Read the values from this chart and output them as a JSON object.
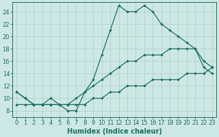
{
  "xlabel": "Humidex (Indice chaleur)",
  "xlim": [
    -0.5,
    23.5
  ],
  "ylim": [
    7,
    25.5
  ],
  "yticks": [
    8,
    10,
    12,
    14,
    16,
    18,
    20,
    22,
    24
  ],
  "xticks": [
    0,
    1,
    2,
    3,
    4,
    5,
    6,
    7,
    8,
    9,
    10,
    11,
    12,
    13,
    14,
    15,
    16,
    17,
    18,
    19,
    20,
    21,
    22,
    23
  ],
  "bg_color": "#cde8e4",
  "grid_major_color": "#b0d8d2",
  "grid_minor_color": "#daf0ec",
  "line_color": "#1a6b60",
  "line1_x": [
    0,
    1,
    2,
    3,
    4,
    5,
    6,
    7,
    8,
    9,
    10,
    11,
    12,
    13,
    14,
    15,
    16,
    17,
    18,
    19,
    20,
    21,
    22,
    23
  ],
  "line1_y": [
    11,
    10,
    9,
    9,
    10,
    9,
    8,
    8,
    11,
    13,
    17,
    21,
    25,
    24,
    24,
    25,
    24,
    22,
    21,
    20,
    19,
    18,
    15,
    14
  ],
  "line2_x": [
    0,
    1,
    2,
    3,
    4,
    5,
    6,
    7,
    8,
    9,
    10,
    11,
    12,
    13,
    14,
    15,
    16,
    17,
    18,
    19,
    20,
    21,
    22,
    23
  ],
  "line2_y": [
    11,
    10,
    9,
    9,
    9,
    9,
    9,
    10,
    11,
    12,
    13,
    14,
    15,
    16,
    16,
    17,
    17,
    17,
    18,
    18,
    18,
    18,
    16,
    15
  ],
  "line3_x": [
    0,
    1,
    2,
    3,
    4,
    5,
    6,
    7,
    8,
    9,
    10,
    11,
    12,
    13,
    14,
    15,
    16,
    17,
    18,
    19,
    20,
    21,
    22,
    23
  ],
  "line3_y": [
    9,
    9,
    9,
    9,
    9,
    9,
    9,
    9,
    9,
    10,
    10,
    11,
    11,
    12,
    12,
    12,
    13,
    13,
    13,
    13,
    14,
    14,
    14,
    15
  ]
}
